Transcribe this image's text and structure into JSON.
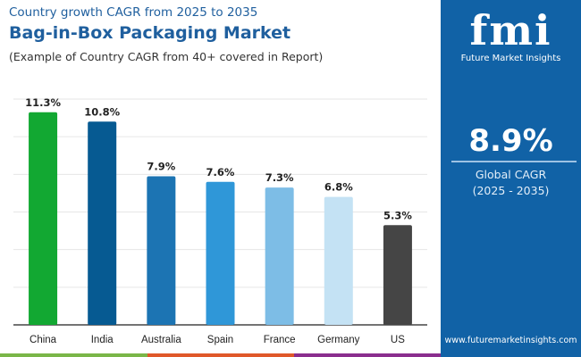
{
  "header": {
    "subtitle": "Country growth CAGR from 2025 to 2035",
    "title": "Bag-in-Box Packaging Market",
    "note": "(Example of Country CAGR from 40+ covered in Report)"
  },
  "panel": {
    "logo_text": "fmi",
    "brand": "Future Market Insights",
    "global_cagr": "8.9%",
    "cagr_label": "Global CAGR",
    "cagr_period": "(2025 - 2035)",
    "url": "www.futuremarketinsights.com",
    "color": "#1162a6"
  },
  "chart_data": {
    "type": "bar",
    "categories": [
      "China",
      "India",
      "Australia",
      "Spain",
      "France",
      "Germany",
      "US"
    ],
    "values": [
      11.3,
      10.8,
      7.9,
      7.6,
      7.3,
      6.8,
      5.3
    ],
    "data_labels": [
      "11.3%",
      "10.8%",
      "7.9%",
      "7.6%",
      "7.3%",
      "6.8%",
      "5.3%"
    ],
    "colors": [
      "#12a832",
      "#065a92",
      "#1c74b3",
      "#2f97d8",
      "#7dbde6",
      "#c4e2f4",
      "#454545"
    ],
    "ylim": [
      0,
      12
    ],
    "grid": true,
    "xlabel": "",
    "ylabel": ""
  }
}
